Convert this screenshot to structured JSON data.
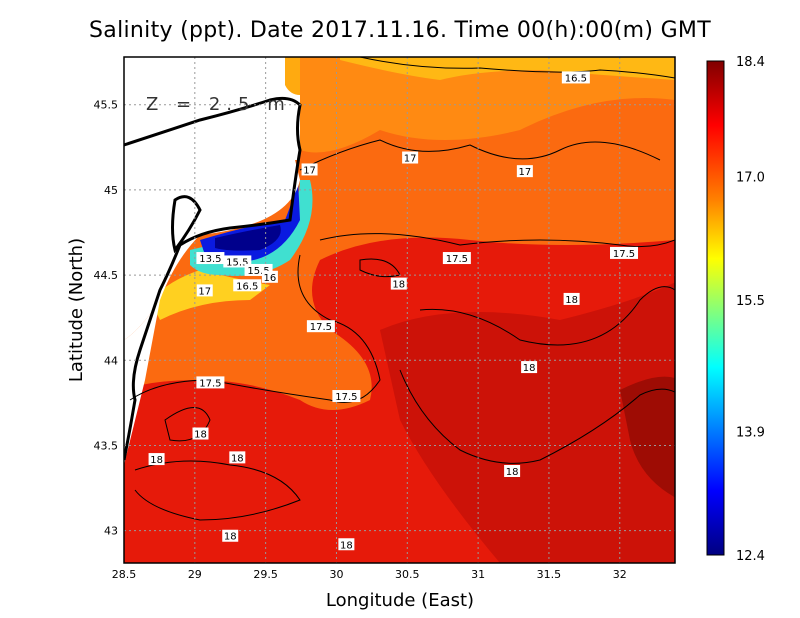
{
  "title": "Salinity (ppt). Date 2017.11.16. Time 00(h):00(m) GMT",
  "annotation": "Z = 2.5 m",
  "xlabel": "Longitude (East)",
  "ylabel": "Latitude (North)",
  "xticks": [
    "28.5",
    "29",
    "29.5",
    "30",
    "30.5",
    "31",
    "31.5",
    "32"
  ],
  "yticks": [
    "45.5",
    "45",
    "44.5",
    "44",
    "43.5",
    "43"
  ],
  "colorbar": {
    "ticks": [
      "18.4",
      "17.0",
      "15.5",
      "13.9",
      "12.4"
    ],
    "min": 12.4,
    "max": 18.4,
    "colors": [
      "#000080",
      "#0000ff",
      "#00ffff",
      "#ffff00",
      "#ff8000",
      "#ff0000",
      "#800000"
    ]
  },
  "extent": {
    "lon": [
      28.5,
      32.39
    ],
    "lat": [
      42.81,
      45.78
    ]
  },
  "grid": true,
  "contour_labels": [
    {
      "text": "16.5",
      "lon": 31.69,
      "lat": 45.66
    },
    {
      "text": "17",
      "lon": 29.81,
      "lat": 45.12
    },
    {
      "text": "17",
      "lon": 30.52,
      "lat": 45.19
    },
    {
      "text": "17",
      "lon": 31.33,
      "lat": 45.11
    },
    {
      "text": "17.5",
      "lon": 30.85,
      "lat": 44.6
    },
    {
      "text": "17.5",
      "lon": 32.03,
      "lat": 44.63
    },
    {
      "text": "18",
      "lon": 30.44,
      "lat": 44.45
    },
    {
      "text": "18",
      "lon": 31.66,
      "lat": 44.36
    },
    {
      "text": "13.5",
      "lon": 29.11,
      "lat": 44.6
    },
    {
      "text": "15.5",
      "lon": 29.3,
      "lat": 44.58
    },
    {
      "text": "15.5",
      "lon": 29.45,
      "lat": 44.53
    },
    {
      "text": "16",
      "lon": 29.53,
      "lat": 44.49
    },
    {
      "text": "16.5",
      "lon": 29.37,
      "lat": 44.44
    },
    {
      "text": "17",
      "lon": 29.07,
      "lat": 44.41
    },
    {
      "text": "17.5",
      "lon": 29.89,
      "lat": 44.2
    },
    {
      "text": "18",
      "lon": 31.36,
      "lat": 43.96
    },
    {
      "text": "17.5",
      "lon": 29.11,
      "lat": 43.87
    },
    {
      "text": "17.5",
      "lon": 30.07,
      "lat": 43.79
    },
    {
      "text": "18",
      "lon": 29.04,
      "lat": 43.57
    },
    {
      "text": "18",
      "lon": 28.73,
      "lat": 43.42
    },
    {
      "text": "18",
      "lon": 29.3,
      "lat": 43.43
    },
    {
      "text": "18",
      "lon": 31.24,
      "lat": 43.35
    },
    {
      "text": "18",
      "lon": 29.25,
      "lat": 42.97
    },
    {
      "text": "18",
      "lon": 30.07,
      "lat": 42.92
    }
  ]
}
